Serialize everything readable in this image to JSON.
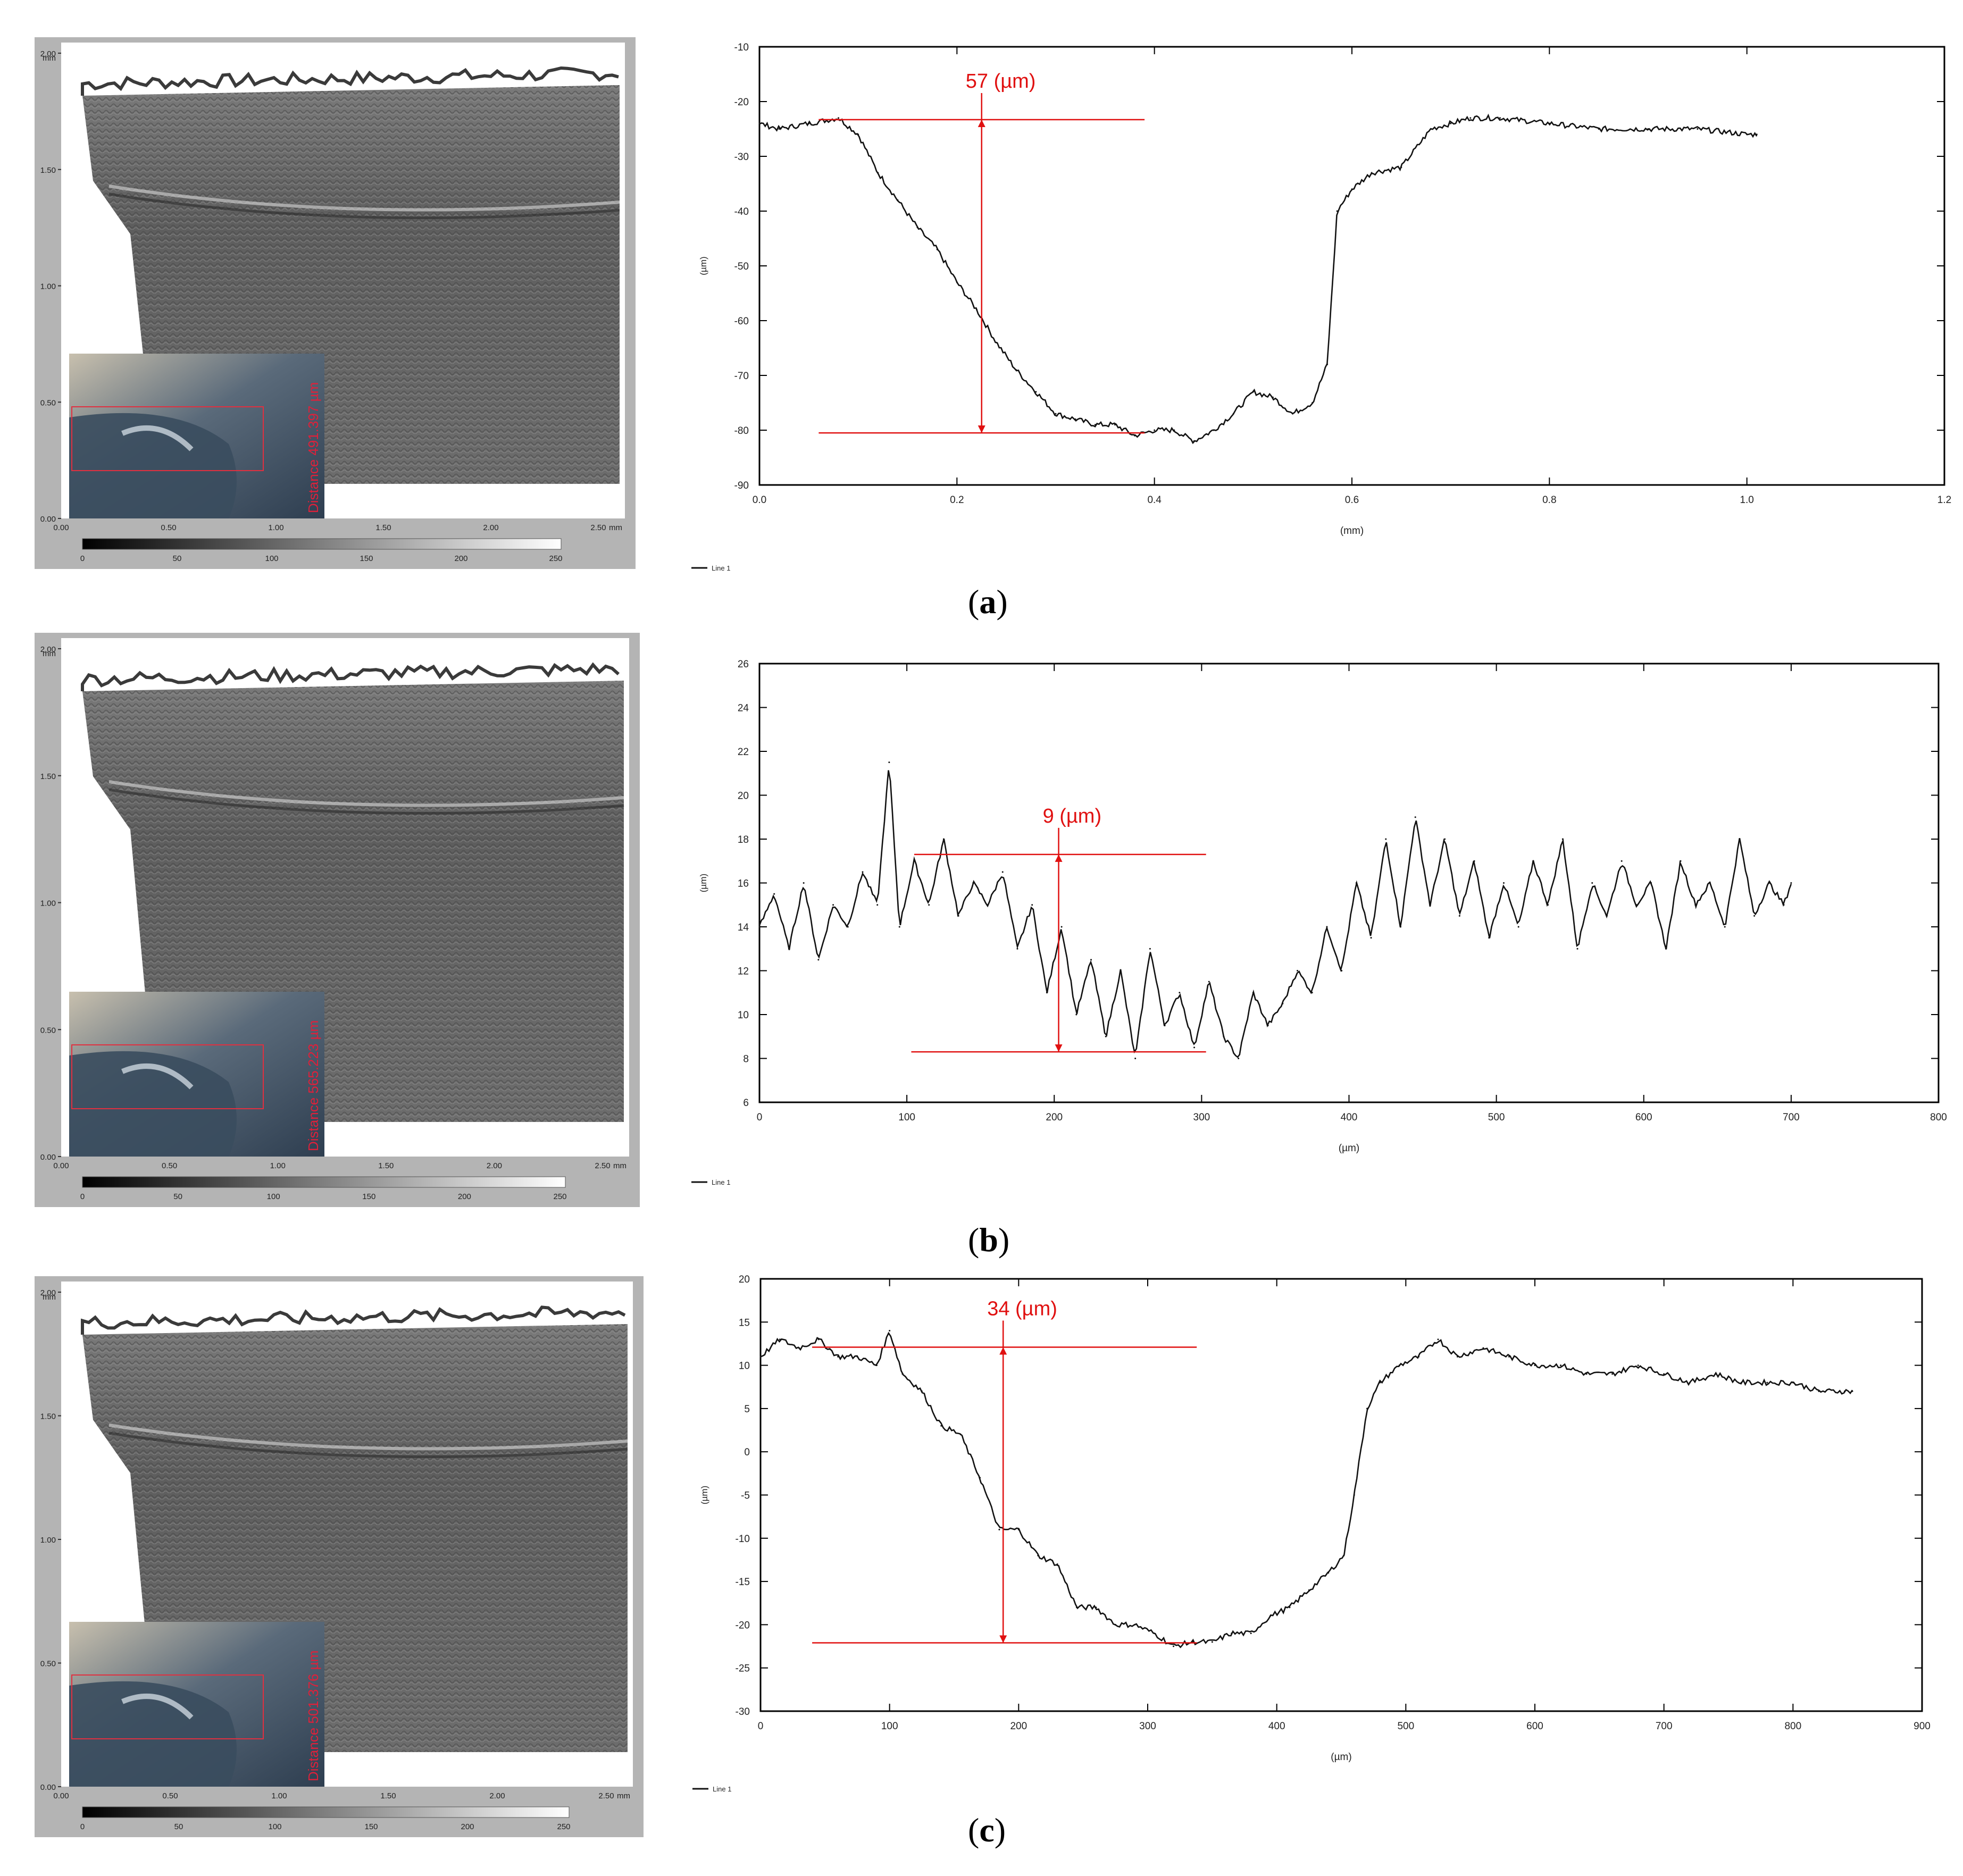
{
  "panels": [
    {
      "caption": "a",
      "scan": {
        "y_unit": "mm",
        "x_unit": "mm",
        "y_ticks": [
          "0.00",
          "0.50",
          "1.00",
          "1.50",
          "2.00"
        ],
        "x_ticks": [
          "0.00",
          "0.50",
          "1.00",
          "1.50",
          "2.00",
          "2.50"
        ],
        "colorbar_ticks": [
          "0",
          "50",
          "100",
          "150",
          "200",
          "250"
        ],
        "inset_label": "Distance 491.397 µm"
      },
      "measurement": {
        "value": "57",
        "unit": "(µm)"
      },
      "legend": "Line 1",
      "chart_data": {
        "type": "line",
        "xlabel": "(mm)",
        "ylabel": "(µm)",
        "xlim": [
          0,
          1.2
        ],
        "ylim": [
          -90,
          -10
        ],
        "x_ticks": [
          "0.0",
          "0.2",
          "0.4",
          "0.6",
          "0.8",
          "1.0",
          "1.2"
        ],
        "y_ticks": [
          "-90",
          "-80",
          "-70",
          "-60",
          "-50",
          "-40",
          "-30",
          "-20",
          "-10"
        ],
        "series": [
          {
            "name": "Line 1",
            "x": [
              0.0,
              0.02,
              0.05,
              0.08,
              0.1,
              0.12,
              0.14,
              0.16,
              0.18,
              0.2,
              0.22,
              0.24,
              0.26,
              0.28,
              0.3,
              0.32,
              0.34,
              0.36,
              0.38,
              0.4,
              0.42,
              0.44,
              0.46,
              0.48,
              0.5,
              0.52,
              0.54,
              0.56,
              0.575,
              0.585,
              0.6,
              0.62,
              0.65,
              0.68,
              0.7,
              0.72,
              0.75,
              0.8,
              0.85,
              0.9,
              0.95,
              1.0,
              1.01
            ],
            "values": [
              -24,
              -25,
              -24,
              -23,
              -26,
              -33,
              -38,
              -43,
              -47,
              -53,
              -58,
              -64,
              -69,
              -73,
              -77,
              -78,
              -79,
              -79,
              -81,
              -80,
              -80,
              -82,
              -80,
              -77,
              -73,
              -74,
              -77,
              -75,
              -68,
              -40,
              -36,
              -33,
              -32,
              -25,
              -24,
              -23,
              -23,
              -24,
              -25,
              -25,
              -25,
              -26,
              -26
            ]
          }
        ],
        "annotations": {
          "upper_level": -23.3,
          "lower_level": -80.5,
          "arrow_x": 0.225,
          "upper_line_x": [
            0.06,
            0.39
          ],
          "lower_line_x": [
            0.06,
            0.39
          ]
        }
      }
    },
    {
      "caption": "b",
      "scan": {
        "y_unit": "mm",
        "x_unit": "mm",
        "y_ticks": [
          "0.00",
          "0.50",
          "1.00",
          "1.50",
          "2.00"
        ],
        "x_ticks": [
          "0.00",
          "0.50",
          "1.00",
          "1.50",
          "2.00",
          "2.50"
        ],
        "colorbar_ticks": [
          "0",
          "50",
          "100",
          "150",
          "200",
          "250"
        ],
        "inset_label": "Distance 565.223 µm"
      },
      "measurement": {
        "value": "9",
        "unit": "(µm)"
      },
      "legend": "Line 1",
      "chart_data": {
        "type": "line",
        "xlabel": "(µm)",
        "ylabel": "(µm)",
        "xlim": [
          0,
          800
        ],
        "ylim": [
          6,
          26
        ],
        "x_ticks": [
          "0",
          "100",
          "200",
          "300",
          "400",
          "500",
          "600",
          "700",
          "800"
        ],
        "y_ticks": [
          "6",
          "8",
          "10",
          "12",
          "14",
          "16",
          "18",
          "20",
          "22",
          "24",
          "26"
        ],
        "series": [
          {
            "name": "Line 1",
            "x": [
              0,
              10,
              20,
              30,
              40,
              50,
              60,
              70,
              80,
              88,
              95,
              105,
              115,
              125,
              135,
              145,
              155,
              165,
              175,
              185,
              195,
              205,
              215,
              225,
              235,
              245,
              255,
              265,
              275,
              285,
              295,
              305,
              315,
              325,
              335,
              345,
              355,
              365,
              375,
              385,
              395,
              405,
              415,
              425,
              435,
              445,
              455,
              465,
              475,
              485,
              495,
              505,
              515,
              525,
              535,
              545,
              555,
              565,
              575,
              585,
              595,
              605,
              615,
              625,
              635,
              645,
              655,
              665,
              675,
              685,
              695,
              700
            ],
            "values": [
              14,
              15.5,
              13,
              16,
              12.5,
              15,
              14,
              16.5,
              15,
              21.5,
              14,
              17,
              15,
              18,
              14.5,
              16,
              15,
              16.5,
              13,
              15,
              11,
              14,
              10,
              12.5,
              9,
              12,
              8,
              13,
              9.5,
              11,
              8.5,
              11.5,
              9,
              8,
              11,
              9.5,
              10.5,
              12,
              11,
              14,
              12,
              16,
              13.5,
              18,
              14,
              19,
              15,
              18,
              14.5,
              17,
              13.5,
              16,
              14,
              17,
              15,
              18,
              13,
              16,
              14.5,
              17,
              15,
              16,
              13,
              17,
              15,
              16,
              14,
              18,
              14.5,
              16,
              15,
              16
            ]
          }
        ],
        "annotations": {
          "upper_level": 17.3,
          "lower_level": 8.3,
          "arrow_x": 203,
          "upper_line_x": [
            105,
            303
          ],
          "lower_line_x": [
            103,
            303
          ]
        }
      }
    },
    {
      "caption": "c",
      "scan": {
        "y_unit": "mm",
        "x_unit": "mm",
        "y_ticks": [
          "0.00",
          "0.50",
          "1.00",
          "1.50",
          "2.00"
        ],
        "x_ticks": [
          "0.00",
          "0.50",
          "1.00",
          "1.50",
          "2.00",
          "2.50"
        ],
        "colorbar_ticks": [
          "0",
          "50",
          "100",
          "150",
          "200",
          "250"
        ],
        "inset_label": "Distance 501.376 µm"
      },
      "measurement": {
        "value": "34",
        "unit": "(µm)"
      },
      "legend": "Line 1",
      "chart_data": {
        "type": "line",
        "xlabel": "(µm)",
        "ylabel": "(µm)",
        "xlim": [
          0,
          900
        ],
        "ylim": [
          -30,
          20
        ],
        "x_ticks": [
          "0",
          "100",
          "200",
          "300",
          "400",
          "500",
          "600",
          "700",
          "800",
          "900"
        ],
        "y_ticks": [
          "-30",
          "-25",
          "-20",
          "-15",
          "-10",
          "-5",
          "0",
          "5",
          "10",
          "15",
          "20"
        ],
        "series": [
          {
            "name": "Line 1",
            "x": [
              0,
              15,
              30,
              45,
              60,
              75,
              90,
              100,
              110,
              125,
              140,
              155,
              170,
              185,
              200,
              215,
              230,
              245,
              260,
              275,
              290,
              305,
              320,
              335,
              350,
              365,
              380,
              395,
              410,
              425,
              440,
              452,
              460,
              470,
              480,
              495,
              510,
              525,
              540,
              560,
              580,
              600,
              620,
              640,
              660,
              680,
              700,
              720,
              740,
              760,
              780,
              800,
              820,
              840,
              846
            ],
            "values": [
              11,
              13,
              12,
              13,
              11,
              11,
              10,
              14,
              9,
              7,
              3,
              2,
              -3,
              -9,
              -9,
              -12,
              -13,
              -18,
              -18,
              -20,
              -20,
              -21,
              -22.5,
              -22,
              -22,
              -21,
              -21,
              -19,
              -18,
              -16,
              -14,
              -12,
              -5,
              5,
              8,
              10,
              11,
              13,
              11,
              12,
              11,
              10,
              10,
              9,
              9,
              10,
              9,
              8,
              9,
              8,
              8,
              8,
              7,
              7,
              7
            ]
          }
        ],
        "annotations": {
          "upper_level": 12.1,
          "lower_level": -22.1,
          "arrow_x": 188,
          "upper_line_x": [
            40,
            338
          ],
          "lower_line_x": [
            40,
            338
          ]
        }
      }
    }
  ]
}
